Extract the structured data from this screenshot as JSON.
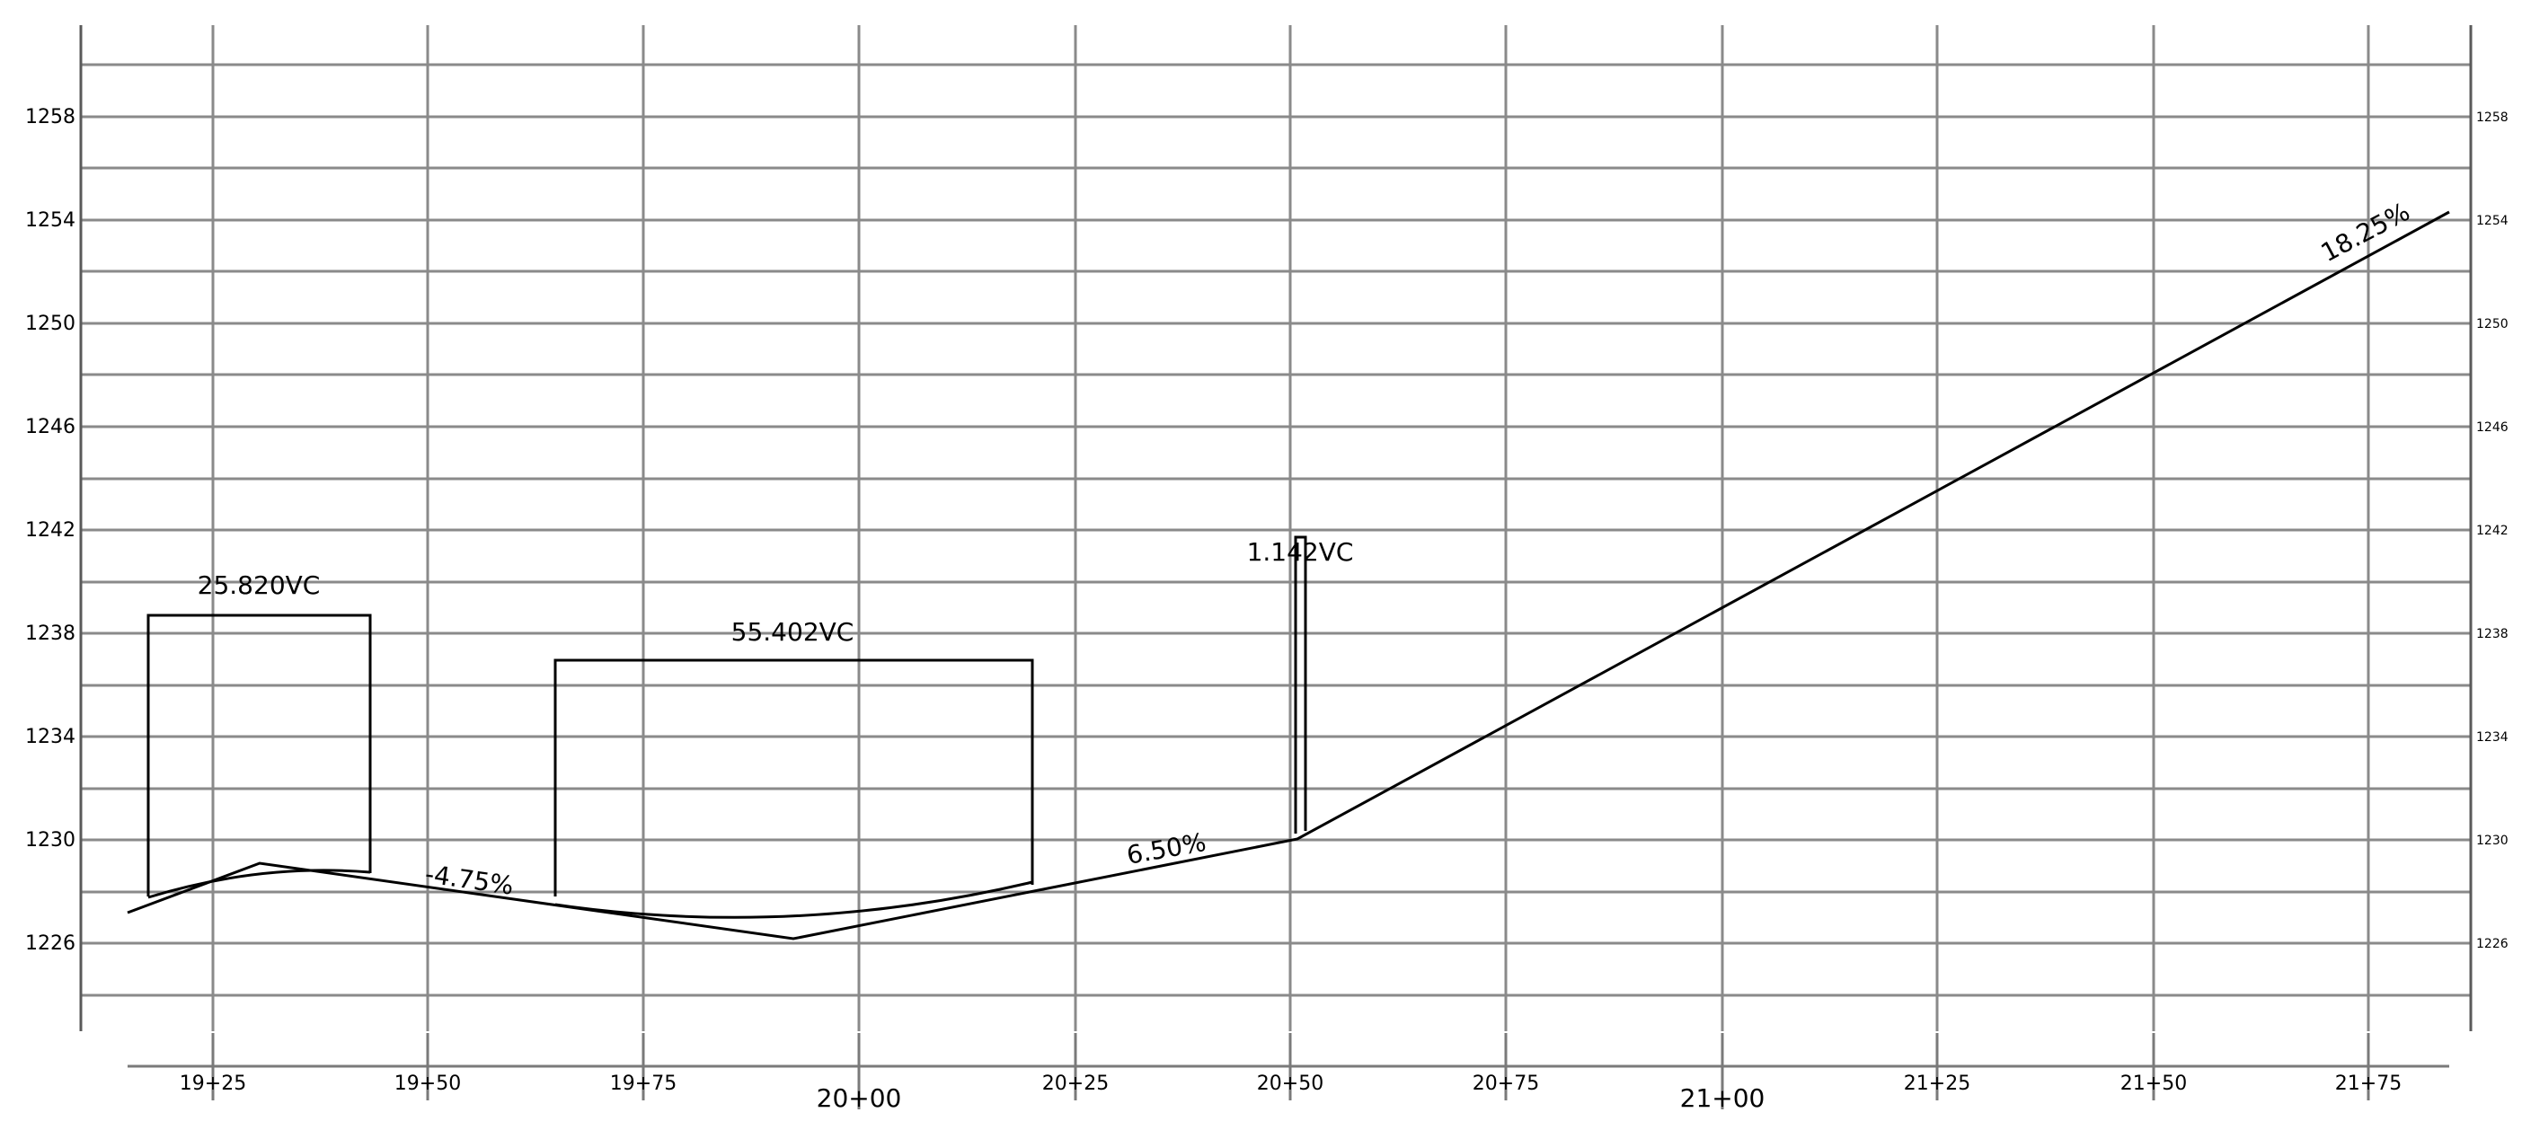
{
  "drawing": {
    "left_elevation_labels": [
      "1258",
      "1254",
      "1250",
      "1246",
      "1242",
      "1238",
      "1234",
      "1230",
      "1226"
    ],
    "right_elevation_labels": [
      "1258",
      "1254",
      "1250",
      "1246",
      "1242",
      "1238",
      "1234",
      "1230",
      "1226"
    ],
    "station_labels": [
      "19+25",
      "19+50",
      "19+75",
      "20+00",
      "20+25",
      "20+50",
      "20+75",
      "21+00",
      "21+25",
      "21+50",
      "21+75"
    ],
    "vertical_curves": [
      {
        "length_label": "25.820VC",
        "start_station": "19+17.08",
        "end_station": "19+42.90"
      },
      {
        "length_label": "55.402VC",
        "start_station": "19+64.33",
        "end_station": "20+19.73"
      },
      {
        "length_label": "1.142VC",
        "start_station": "20+50.43",
        "end_station": "20+51.57"
      }
    ],
    "grade_labels": [
      "-4.75%",
      "6.50%",
      "18.25%"
    ],
    "profile_points": [
      {
        "station": "19+15",
        "elevation": 1227.2
      },
      {
        "station": "19+30",
        "elevation": 1229.1
      },
      {
        "station": "19+92",
        "elevation": 1226.2
      },
      {
        "station": "20+51",
        "elevation": 1230.0
      },
      {
        "station": "21+84",
        "elevation": 1254.3
      }
    ]
  }
}
